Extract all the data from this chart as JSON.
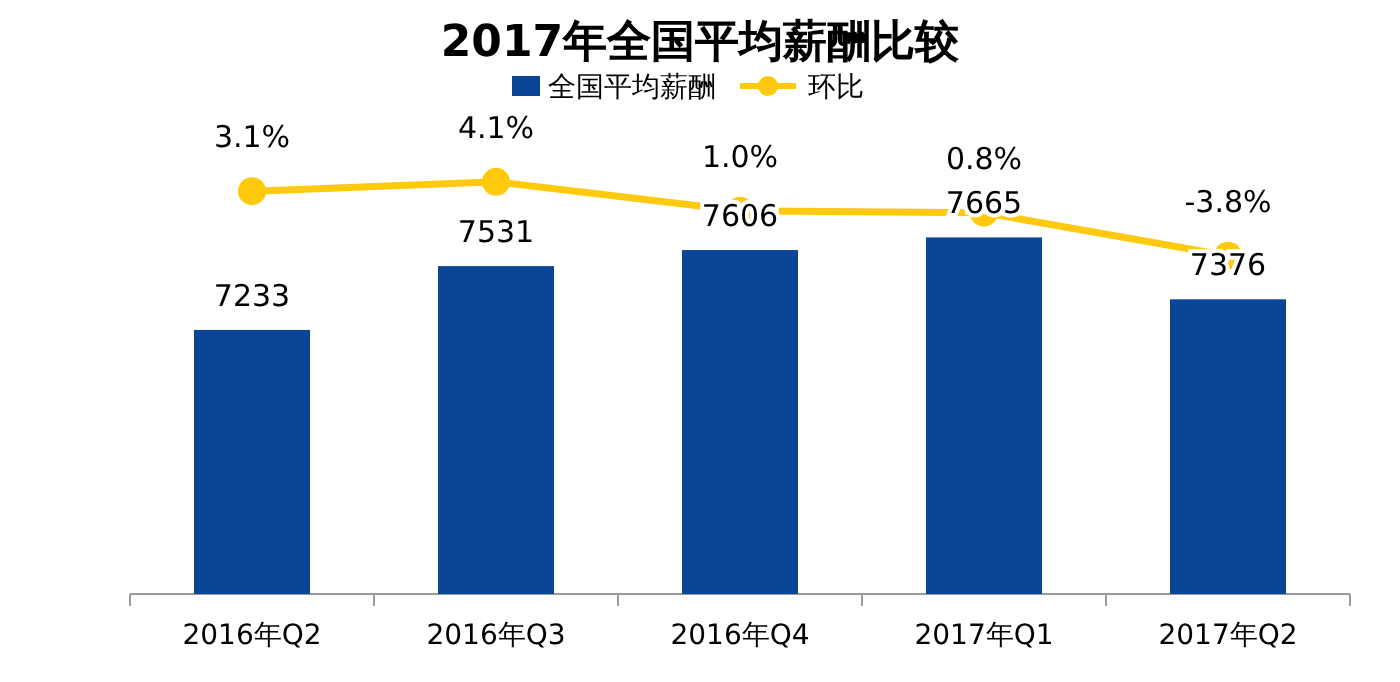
{
  "chart_data": {
    "type": "bar",
    "title": "2017年全国平均薪酬比较",
    "categories": [
      "2016年Q2",
      "2016年Q3",
      "2016年Q4",
      "2017年Q1",
      "2017年Q2"
    ],
    "series": [
      {
        "name": "全国平均薪酬",
        "color": "#0b4596",
        "values": [
          7233,
          7531,
          7606,
          7665,
          7376
        ],
        "value_labels": [
          "7233",
          "7531",
          "7606",
          "7665",
          "7376"
        ]
      },
      {
        "name": "环比",
        "type": "line",
        "axis": "y2",
        "color": "#ffc90e",
        "marker": "circle",
        "values": [
          3.1,
          4.1,
          1.0,
          0.8,
          -3.8
        ],
        "value_labels": [
          "3.1%",
          "4.1%",
          "1.0%",
          "0.8%",
          "-3.8%"
        ]
      }
    ],
    "ylim": [
      6000,
      8400
    ],
    "y2lim": [
      -40,
      15
    ],
    "tick_labels": "x",
    "legend": "top"
  }
}
